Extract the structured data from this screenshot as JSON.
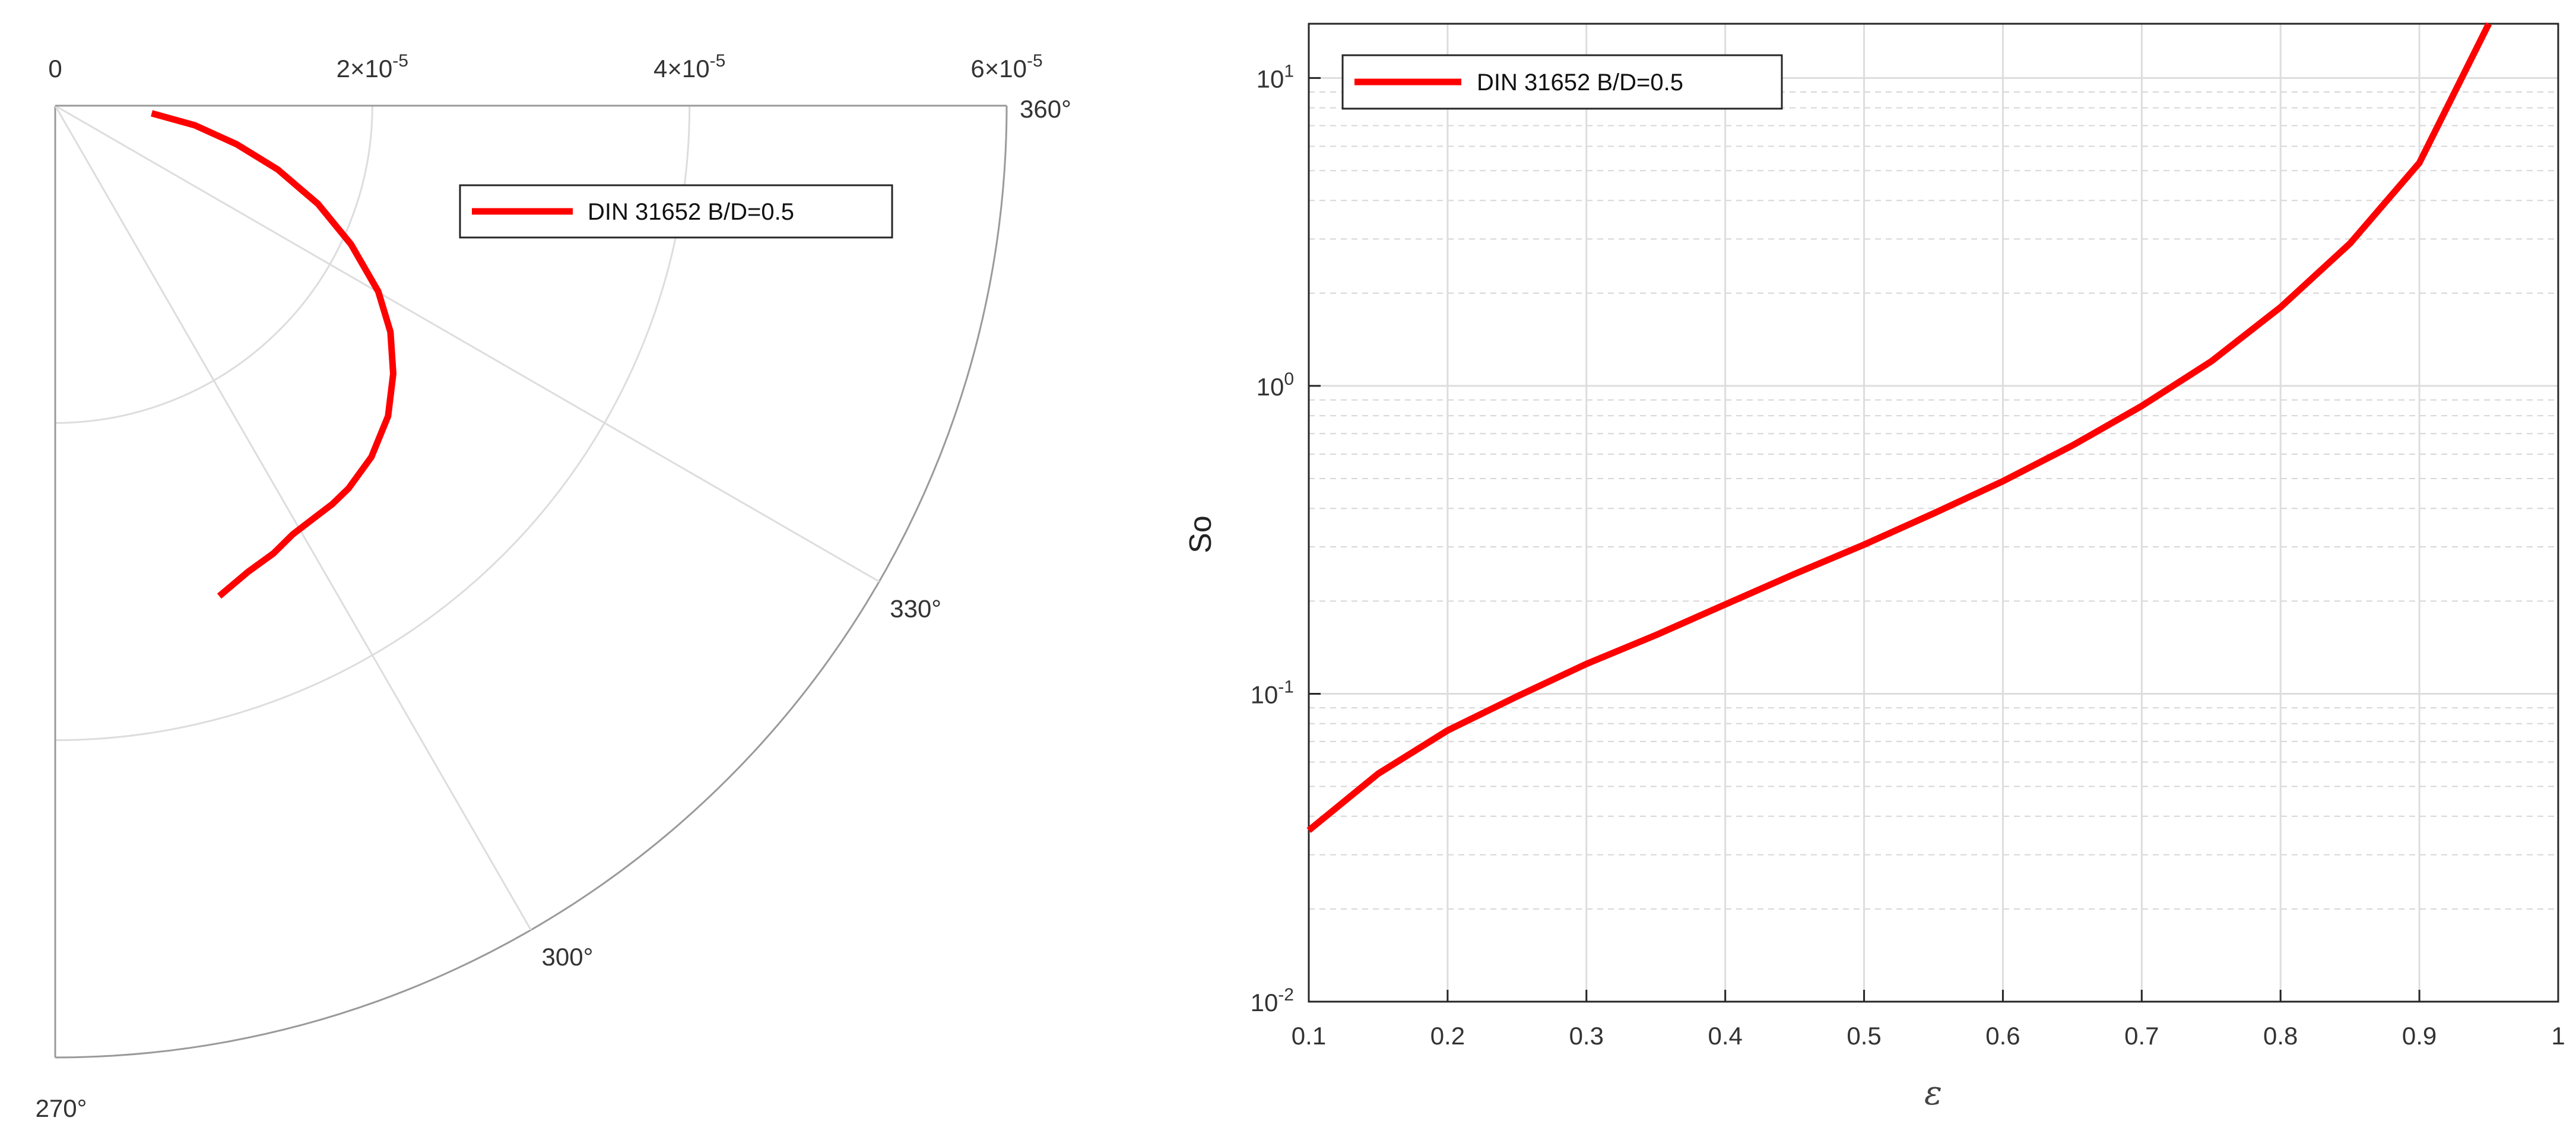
{
  "colors": {
    "series": "#ff0000",
    "grid": "#dddddd",
    "minor_grid": "#d6d6d6",
    "axis": "#262626",
    "polar_frame": "#9a9a9a"
  },
  "chart_data": [
    {
      "type": "line",
      "subtype": "polar",
      "legend_placement": "top-center",
      "radial_ticks": [
        {
          "value": 0,
          "label": "0"
        },
        {
          "value": 2e-05,
          "mantissa": "2",
          "exponent": "-5"
        },
        {
          "value": 4e-05,
          "mantissa": "4",
          "exponent": "-5"
        },
        {
          "value": 6e-05,
          "mantissa": "6",
          "exponent": "-5"
        }
      ],
      "rlim": [
        0,
        6e-05
      ],
      "theta_ticks": [
        {
          "value": 360,
          "label": "360°"
        },
        {
          "value": 330,
          "label": "330°"
        },
        {
          "value": 300,
          "label": "300°"
        },
        {
          "value": 270,
          "label": "270°"
        }
      ],
      "theta_range_deg": [
        270,
        360
      ],
      "grid": true,
      "series": [
        {
          "name": "DIN 31652 B/D=0.5",
          "theta_deg": [
            355.5,
            352.0,
            348.0,
            344.0,
            339.5,
            334.9,
            330.1,
            326.0,
            321.6,
            317.0,
            312.0,
            307.5,
            304.8,
            302.0,
            299.0,
            296.0,
            292.5,
            288.5
          ],
          "r": [
            6.1e-06,
            8.9e-06,
            1.17e-05,
            1.46e-05,
            1.77e-05,
            2.06e-05,
            2.35e-05,
            2.55e-05,
            2.72e-05,
            2.87e-05,
            2.98e-05,
            3.04e-05,
            3.06e-05,
            3.07e-05,
            3.09e-05,
            3.14e-05,
            3.18e-05,
            3.26e-05
          ]
        }
      ]
    },
    {
      "type": "line",
      "xlabel": "ε",
      "ylabel": "So",
      "xlim": [
        0.1,
        1
      ],
      "ylim": [
        0.01,
        15
      ],
      "yscale": "log",
      "x_ticks": [
        "0.1",
        "0.2",
        "0.3",
        "0.4",
        "0.5",
        "0.6",
        "0.7",
        "0.8",
        "0.9",
        "1"
      ],
      "y_ticks": [
        {
          "value": 0.01,
          "mantissa": "10",
          "exponent": "-2"
        },
        {
          "value": 0.1,
          "mantissa": "10",
          "exponent": "-1"
        },
        {
          "value": 1,
          "mantissa": "10",
          "exponent": "0"
        },
        {
          "value": 10,
          "mantissa": "10",
          "exponent": "1"
        }
      ],
      "grid": true,
      "minor_grid": true,
      "legend_placement": "top-left",
      "series": [
        {
          "name": "DIN 31652 B/D=0.5",
          "x": [
            0.1,
            0.15,
            0.2,
            0.25,
            0.3,
            0.35,
            0.4,
            0.45,
            0.5,
            0.55,
            0.6,
            0.65,
            0.7,
            0.75,
            0.8,
            0.85,
            0.9,
            0.95
          ],
          "y": [
            0.036,
            0.055,
            0.076,
            0.098,
            0.125,
            0.155,
            0.195,
            0.245,
            0.305,
            0.385,
            0.49,
            0.64,
            0.86,
            1.2,
            1.8,
            2.9,
            5.3,
            15
          ]
        }
      ]
    }
  ]
}
